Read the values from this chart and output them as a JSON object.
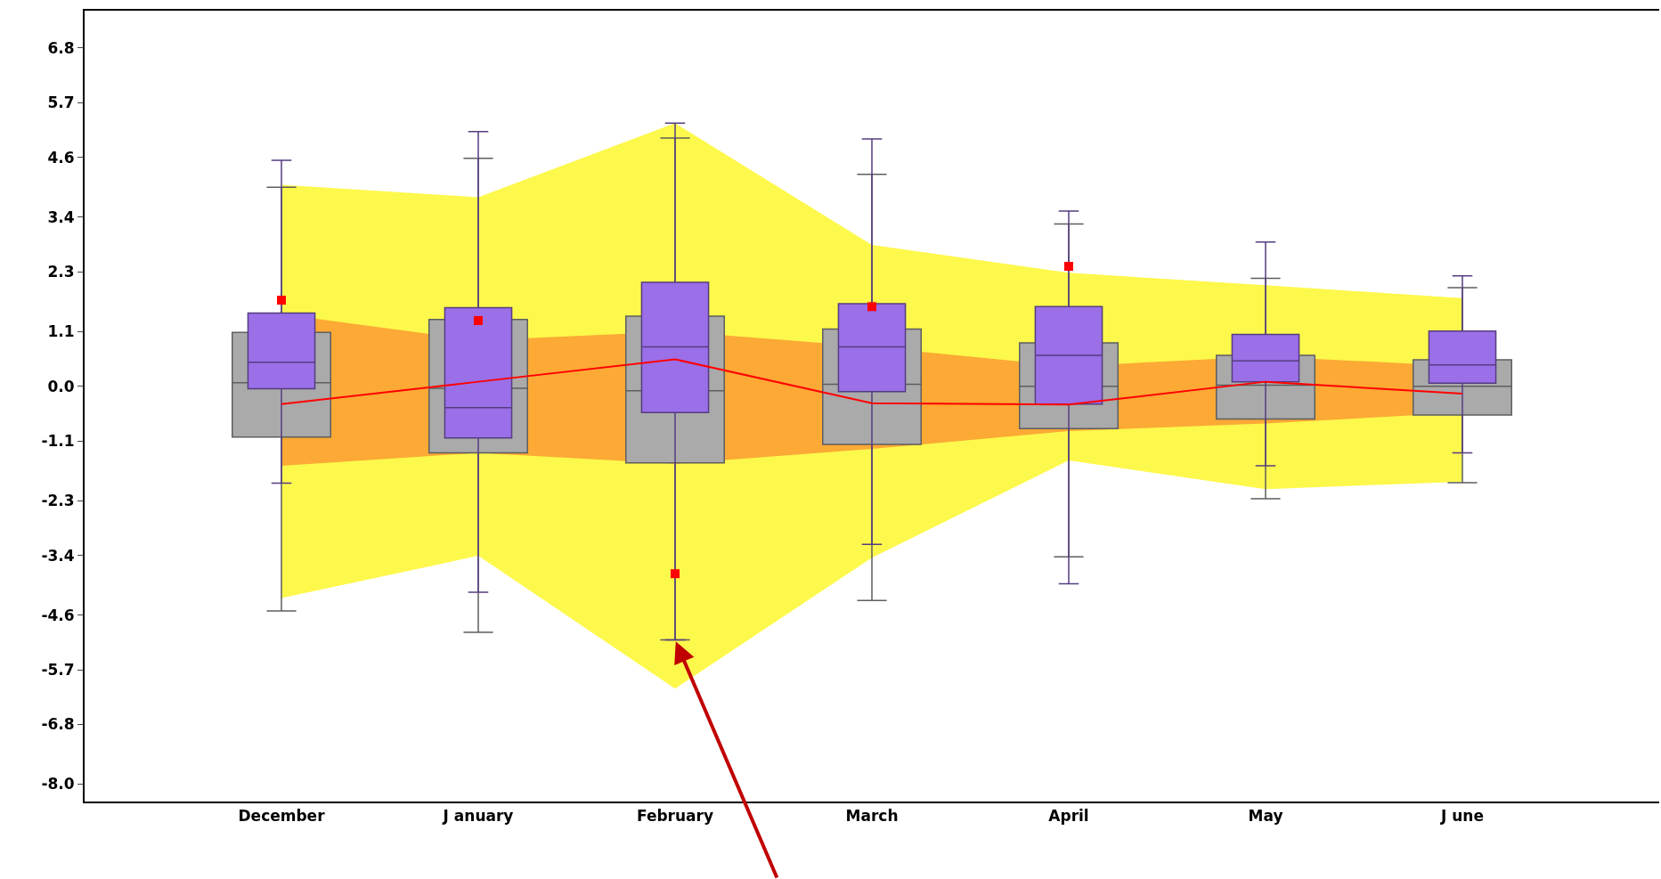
{
  "chart_data": {
    "type": "box",
    "categories": [
      "December",
      "J anuary",
      "February",
      "March",
      "April",
      "May",
      "J une"
    ],
    "ylim": [
      -8.35,
      7.55
    ],
    "yticks": [
      {
        "value": -8,
        "label": "-8.0"
      },
      -6.8,
      -5.7,
      -4.6,
      -3.4,
      -2.3,
      -1.1,
      {
        "value": 0,
        "label": "0.0"
      },
      1.1,
      2.3,
      3.4,
      4.6,
      5.7,
      6.8
    ],
    "grid": false,
    "series": [
      {
        "type": "line",
        "color": "#fdf84c",
        "values": [
          null,
          null,
          null,
          null,
          null,
          null,
          null
        ],
        "lower": [
          -4.26,
          -3.41,
          -6.08,
          -3.45,
          -1.49,
          -2.07,
          -1.92
        ],
        "upper": [
          4.05,
          3.8,
          5.29,
          2.84,
          2.28,
          2.03,
          1.77
        ]
      },
      {
        "type": "line",
        "color": "#fca935",
        "values": [
          null,
          null,
          null,
          null,
          null,
          null,
          null
        ],
        "lower": [
          -1.6,
          -1.34,
          -1.56,
          -1.26,
          -0.9,
          -0.75,
          -0.53
        ],
        "upper": [
          1.45,
          0.92,
          1.1,
          0.79,
          0.4,
          0.6,
          0.4
        ]
      },
      {
        "color": "#aaaaaa",
        "boxes": [
          {
            "low": -4.52,
            "q1": -1.02,
            "median": 0.07,
            "q3": 1.08,
            "high": 4.0
          },
          {
            "low": -4.95,
            "q1": -1.34,
            "median": -0.04,
            "q3": 1.34,
            "high": 4.58
          },
          {
            "low": -5.1,
            "q1": -1.54,
            "median": -0.09,
            "q3": 1.41,
            "high": 4.99
          },
          {
            "low": -4.31,
            "q1": -1.17,
            "median": 0.04,
            "q3": 1.15,
            "high": 4.26
          },
          {
            "low": -3.43,
            "q1": -0.85,
            "median": 0.0,
            "q3": 0.87,
            "high": 3.26
          },
          {
            "low": -2.26,
            "q1": -0.66,
            "median": 0.02,
            "q3": 0.62,
            "high": 2.17
          },
          {
            "low": -1.94,
            "q1": -0.58,
            "median": 0.0,
            "q3": 0.53,
            "high": 1.98
          }
        ]
      },
      {
        "color": "#9b6fe8",
        "boxes": [
          {
            "low": -1.95,
            "q1": -0.05,
            "median": 0.48,
            "q3": 1.47,
            "high": 4.54
          },
          {
            "low": -4.14,
            "q1": -1.04,
            "median": -0.43,
            "q3": 1.58,
            "high": 5.12
          },
          {
            "low": -5.1,
            "q1": -0.53,
            "median": 0.79,
            "q3": 2.09,
            "high": 5.29
          },
          {
            "low": -3.18,
            "q1": -0.11,
            "median": 0.79,
            "q3": 1.66,
            "high": 4.97
          },
          {
            "low": -3.97,
            "q1": -0.36,
            "median": 0.62,
            "q3": 1.6,
            "high": 3.52
          },
          {
            "low": -1.6,
            "q1": 0.09,
            "median": 0.51,
            "q3": 1.04,
            "high": 2.9
          },
          {
            "low": -1.34,
            "q1": 0.06,
            "median": 0.43,
            "q3": 1.11,
            "high": 2.22
          }
        ]
      },
      {
        "type": "line",
        "color": "#ff0000",
        "values": [
          -0.36,
          0.09,
          0.54,
          -0.34,
          -0.37,
          0.09,
          -0.15
        ]
      },
      {
        "type": "scatter",
        "color": "#ff0000",
        "marker": "square",
        "values": [
          1.73,
          1.32,
          -3.77,
          1.6,
          2.41,
          null,
          null
        ]
      }
    ]
  }
}
